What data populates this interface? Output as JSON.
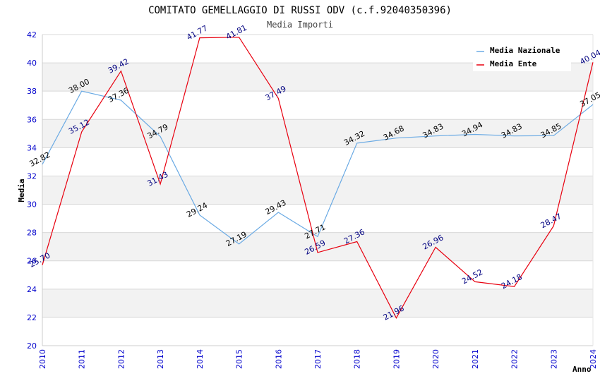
{
  "chart_data": {
    "type": "line",
    "title": "COMITATO GEMELLAGGIO DI RUSSI ODV (c.f.92040350396)",
    "subtitle": "Media Importi",
    "ylabel": "Media",
    "xlabel": "Anno",
    "ylim": [
      20,
      42
    ],
    "yticks": [
      20,
      22,
      24,
      26,
      28,
      30,
      32,
      34,
      36,
      38,
      40,
      42
    ],
    "categories": [
      "2010",
      "2011",
      "2012",
      "2013",
      "2014",
      "2015",
      "2016",
      "2017",
      "2018",
      "2019",
      "2020",
      "2021",
      "2022",
      "2023",
      "2024"
    ],
    "grid": "horizontal bands",
    "legend_position": "top-right",
    "series": [
      {
        "name": "Media Nazionale",
        "color": "#6aaae4",
        "label_color": "#000000",
        "values": [
          32.82,
          38.0,
          37.36,
          34.79,
          29.24,
          27.19,
          29.43,
          27.71,
          34.32,
          34.68,
          34.83,
          34.94,
          34.83,
          34.85,
          37.05
        ],
        "labels": [
          "32.82",
          "38.00",
          "37.36",
          "34.79",
          "29.24",
          "27.19",
          "29.43",
          "27.71",
          "34.32",
          "34.68",
          "34.83",
          "34.94",
          "34.83",
          "34.85",
          "37.05"
        ]
      },
      {
        "name": "Media Ente",
        "color": "#e8000f",
        "label_color": "#000080",
        "values": [
          25.7,
          35.12,
          39.42,
          31.43,
          41.77,
          41.81,
          37.49,
          26.59,
          27.36,
          21.96,
          26.96,
          24.52,
          24.18,
          28.47,
          40.04
        ],
        "labels": [
          "25.70",
          "35.12",
          "39.42",
          "31.43",
          "41.77",
          "41.81",
          "37.49",
          "26.59",
          "27.36",
          "21.96",
          "26.96",
          "24.52",
          "24.18",
          "28.47",
          "40.04"
        ]
      }
    ]
  }
}
